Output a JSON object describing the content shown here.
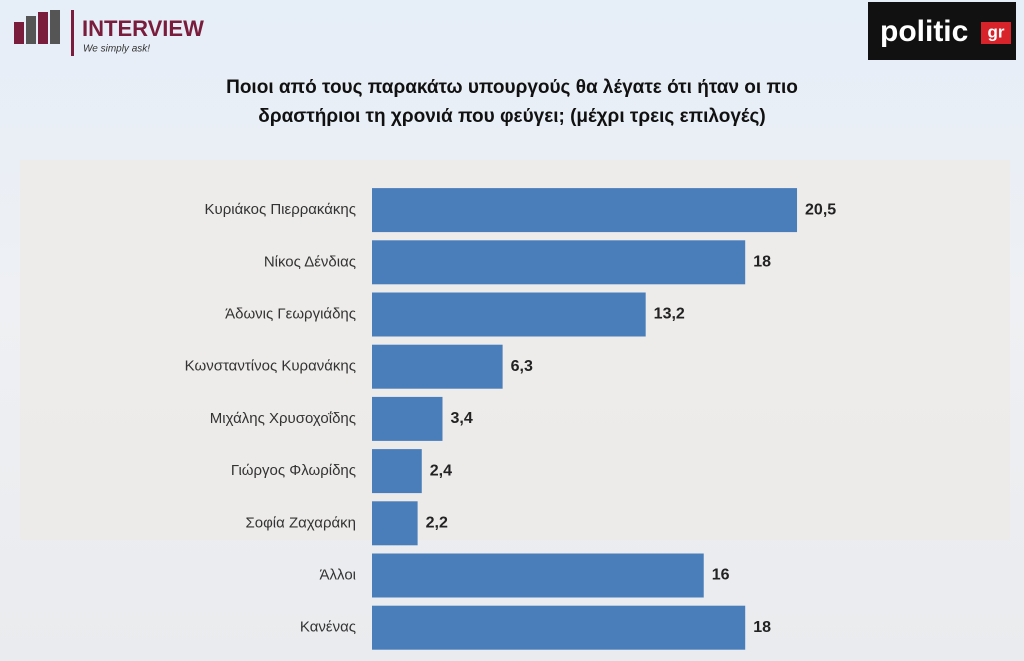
{
  "brand": {
    "name": "INTERVIEW",
    "tagline": "We simply ask!"
  },
  "publisher": {
    "name": "politic",
    "suffix": "gr"
  },
  "chart_data": {
    "type": "hbar",
    "title": [
      "Ποιοι από τους παρακάτω υπουργούς θα λέγατε ότι  ήταν οι πιο",
      "δραστήριοι τη χρονιά που φεύγει; (μέχρι τρεις επιλογές)"
    ],
    "categories": [
      "Κυριάκος Πιερρακάκης",
      "Νίκος Δένδιας",
      "Άδωνις Γεωργιάδης",
      "Κωνσταντίνος Κυρανάκης",
      "Μιχάλης Χρυσοχοΐδης",
      "Γιώργος Φλωρίδης",
      "Σοφία Ζαχαράκη",
      "Άλλοι",
      "Κανένας"
    ],
    "values": [
      20.5,
      18,
      13.2,
      6.3,
      3.4,
      2.4,
      2.2,
      16,
      18
    ],
    "value_labels": [
      "20,5",
      "18",
      "13,2",
      "6,3",
      "3,4",
      "2,4",
      "2,2",
      "16",
      "18"
    ],
    "color": "#4a7ebb",
    "xlim": [
      0,
      30
    ]
  }
}
